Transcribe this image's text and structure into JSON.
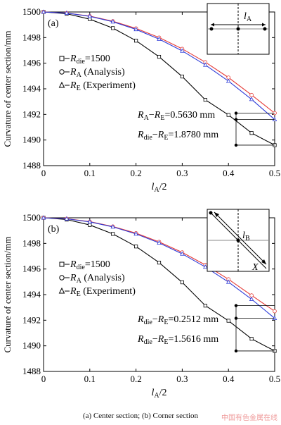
{
  "caption": "(a) Center section; (b) Corner section",
  "watermark": "中国有色金属在线",
  "colors": {
    "die": "#000000",
    "analysis": "#e53935",
    "experiment": "#2c3ad8"
  },
  "chart_data": [
    {
      "type": "line",
      "panel_label": "(a)",
      "xlabel_main": "l",
      "xlabel_sub": "A",
      "xlabel_tail": "/2",
      "ylabel": "Curvature of center section/mm",
      "xlim": [
        0,
        0.5
      ],
      "ylim": [
        1488,
        1500
      ],
      "xticks": [
        "0",
        "0.1",
        "0.2",
        "0.3",
        "0.4",
        "0.5"
      ],
      "yticks": [
        "1488",
        "1490",
        "1492",
        "1494",
        "1496",
        "1498",
        "1500"
      ],
      "legend": [
        {
          "marker": "square",
          "main": "R",
          "sub": "die",
          "tail": "=1500"
        },
        {
          "marker": "circle",
          "main": "R",
          "sub": "A",
          "tail": " (Analysis)"
        },
        {
          "marker": "triangle",
          "main": "R",
          "sub": "E",
          "tail": " (Experiment)"
        }
      ],
      "series": [
        {
          "id": "die",
          "x": [
            0,
            0.05,
            0.1,
            0.15,
            0.2,
            0.25,
            0.3,
            0.35,
            0.4,
            0.45,
            0.5
          ],
          "y": [
            1500,
            1499.86,
            1499.44,
            1498.74,
            1497.76,
            1496.5,
            1494.96,
            1493.14,
            1491.96,
            1490.55,
            1489.6
          ]
        },
        {
          "id": "analysis",
          "x": [
            0,
            0.05,
            0.1,
            0.15,
            0.2,
            0.25,
            0.3,
            0.35,
            0.4,
            0.45,
            0.5
          ],
          "y": [
            1500,
            1499.92,
            1499.68,
            1499.28,
            1498.72,
            1498.0,
            1497.12,
            1496.08,
            1494.88,
            1493.52,
            1492.1
          ]
        },
        {
          "id": "experiment",
          "x": [
            0,
            0.05,
            0.1,
            0.15,
            0.2,
            0.25,
            0.3,
            0.35,
            0.4,
            0.45,
            0.5
          ],
          "y": [
            1500,
            1499.91,
            1499.66,
            1499.24,
            1498.64,
            1497.88,
            1496.96,
            1495.86,
            1494.6,
            1493.18,
            1491.6
          ]
        }
      ],
      "annotations": [
        {
          "a": "R",
          "a_sub": "A",
          "b": "R",
          "b_sub": "E",
          "value": "=0.5630 mm"
        },
        {
          "a": "R",
          "a_sub": "die",
          "b": "R",
          "b_sub": "E",
          "value": "=1.8780 mm"
        }
      ],
      "inset": {
        "label_main": "l",
        "label_sub": "A"
      }
    },
    {
      "type": "line",
      "panel_label": "(b)",
      "xlabel_main": "l",
      "xlabel_sub": "A",
      "xlabel_tail": "/2",
      "ylabel": "Curvature of center section/mm",
      "xlim": [
        0,
        0.5
      ],
      "ylim": [
        1488,
        1500
      ],
      "xticks": [
        "0",
        "0.1",
        "0.2",
        "0.3",
        "0.4",
        "0.5"
      ],
      "yticks": [
        "1488",
        "1490",
        "1492",
        "1494",
        "1496",
        "1498",
        "1500"
      ],
      "legend": [
        {
          "marker": "square",
          "main": "R",
          "sub": "die",
          "tail": "=1500"
        },
        {
          "marker": "circle",
          "main": "R",
          "sub": "A",
          "tail": " (Analysis)"
        },
        {
          "marker": "triangle",
          "main": "R",
          "sub": "E",
          "tail": " (Experiment)"
        }
      ],
      "series": [
        {
          "id": "die",
          "x": [
            0,
            0.05,
            0.1,
            0.15,
            0.2,
            0.25,
            0.3,
            0.35,
            0.4,
            0.45,
            0.5
          ],
          "y": [
            1500,
            1499.86,
            1499.44,
            1498.74,
            1497.76,
            1496.5,
            1494.96,
            1493.14,
            1491.96,
            1490.55,
            1489.6
          ]
        },
        {
          "id": "analysis",
          "x": [
            0,
            0.05,
            0.1,
            0.15,
            0.2,
            0.25,
            0.3,
            0.35,
            0.4,
            0.45,
            0.5
          ],
          "y": [
            1500,
            1499.93,
            1499.7,
            1499.32,
            1498.8,
            1498.12,
            1497.3,
            1496.32,
            1495.2,
            1493.94,
            1492.7
          ]
        },
        {
          "id": "experiment",
          "x": [
            0,
            0.05,
            0.1,
            0.15,
            0.2,
            0.25,
            0.3,
            0.35,
            0.4,
            0.45,
            0.5
          ],
          "y": [
            1500,
            1499.92,
            1499.68,
            1499.29,
            1498.74,
            1498.04,
            1497.18,
            1496.16,
            1494.98,
            1493.64,
            1492.15
          ]
        }
      ],
      "annotations": [
        {
          "a": "R",
          "a_sub": "die",
          "b": "R",
          "b_sub": "E",
          "value": "=0.2512 mm"
        },
        {
          "a": "R",
          "a_sub": "die",
          "b": "R",
          "b_sub": "E",
          "value": "=1.5616 mm"
        }
      ],
      "inset": {
        "label_main": "l",
        "label_sub": "B",
        "corner_label": "X"
      }
    }
  ]
}
